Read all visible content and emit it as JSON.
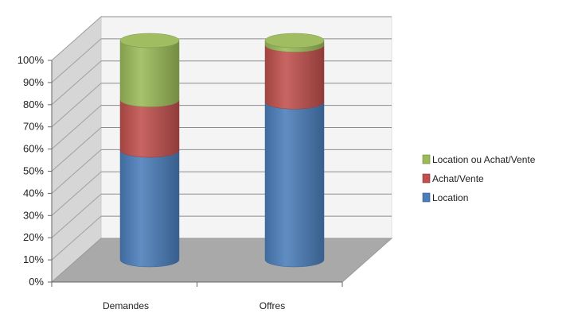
{
  "chart_data": {
    "type": "bar",
    "stacked": true,
    "percent": true,
    "three_d": true,
    "title": "",
    "xlabel": "",
    "ylabel": "",
    "categories": [
      "Demandes",
      "Offres"
    ],
    "series": [
      {
        "name": "Location",
        "values": [
          50,
          72
        ],
        "color": "#4a7ebb"
      },
      {
        "name": "Achat/Vente",
        "values": [
          23,
          26
        ],
        "color": "#c0504d"
      },
      {
        "name": "Location ou Achat/Vente",
        "values": [
          27,
          2
        ],
        "color": "#9bbb59"
      }
    ],
    "ylim": [
      0,
      100
    ],
    "yticks": [
      "0%",
      "10%",
      "20%",
      "30%",
      "40%",
      "50%",
      "60%",
      "70%",
      "80%",
      "90%",
      "100%"
    ],
    "grid": true,
    "legend": {
      "position": "right",
      "order": [
        "Location ou Achat/Vente",
        "Achat/Vente",
        "Location"
      ]
    }
  }
}
